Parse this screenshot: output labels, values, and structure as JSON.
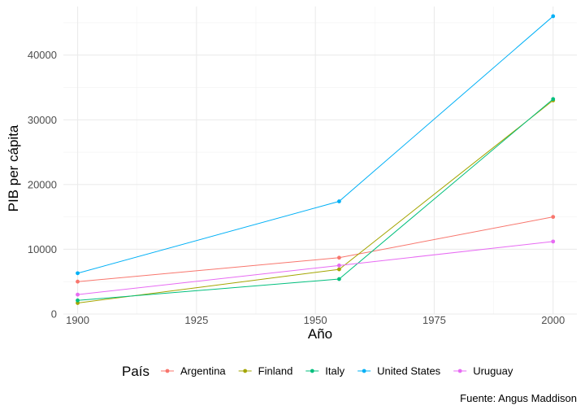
{
  "chart_data": {
    "type": "line",
    "xlabel": "Año",
    "ylabel": "PIB per cápita",
    "caption": "Fuente: Angus Maddison",
    "legend_title": "País",
    "legend_position": "bottom",
    "grid": true,
    "xlim": [
      1897,
      2005
    ],
    "ylim": [
      0,
      47500
    ],
    "x_ticks": [
      1900,
      1925,
      1950,
      1975,
      2000
    ],
    "y_ticks": [
      0,
      10000,
      20000,
      30000,
      40000
    ],
    "x_tick_labels": [
      "1900",
      "1925",
      "1950",
      "1975",
      "2000"
    ],
    "y_tick_labels": [
      "0",
      "10000",
      "20000",
      "30000",
      "40000"
    ],
    "x": [
      1900,
      1955,
      2000
    ],
    "series": [
      {
        "name": "Argentina",
        "color": "#F8766D",
        "values": [
          5000,
          8700,
          15000
        ]
      },
      {
        "name": "Finland",
        "color": "#A3A500",
        "values": [
          1700,
          6900,
          33000
        ]
      },
      {
        "name": "Italy",
        "color": "#00BF7D",
        "values": [
          2100,
          5400,
          33200
        ]
      },
      {
        "name": "United States",
        "color": "#00B0F6",
        "values": [
          6300,
          17400,
          46000
        ]
      },
      {
        "name": "Uruguay",
        "color": "#E76BF3",
        "values": [
          3000,
          7500,
          11200
        ]
      }
    ]
  }
}
